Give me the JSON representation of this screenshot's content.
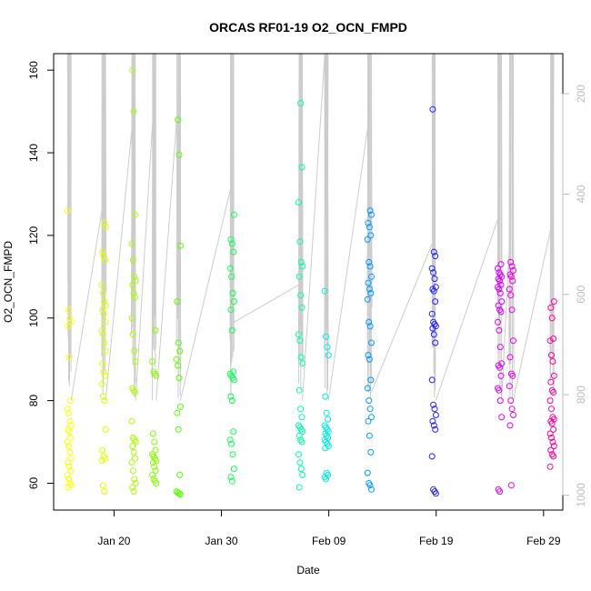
{
  "chart_data": {
    "type": "scatter",
    "title": "ORCAS RF01-19 O2_OCN_FMPD",
    "xlabel": "Date",
    "ylabel": "O2_OCN_FMPD",
    "xlim": [
      "2016-01-14T09:00",
      "2016-03-01T19:00"
    ],
    "ylim": [
      53.5,
      164
    ],
    "y2lim": [
      1030,
      120
    ],
    "x_ticks": [
      {
        "date": "2016-01-20",
        "label": "Jan 20"
      },
      {
        "date": "2016-01-30",
        "label": "Jan 30"
      },
      {
        "date": "2016-02-09",
        "label": "Feb 09"
      },
      {
        "date": "2016-02-19",
        "label": "Feb 19"
      },
      {
        "date": "2016-02-29",
        "label": "Feb 29"
      }
    ],
    "y_ticks": [
      60,
      80,
      100,
      120,
      140,
      160
    ],
    "y2_ticks": [
      200,
      400,
      600,
      800,
      1000
    ],
    "grid": false,
    "legend": "none",
    "colors": {
      "track": "#cccccc",
      "right_axis": "#bdbdbd"
    },
    "flights": [
      {
        "date": "2016-01-15T20:00",
        "color": "#ffff00",
        "values": [
          126,
          102,
          100,
          99,
          98,
          90.5,
          80,
          78,
          77,
          75,
          74,
          73,
          72.5,
          71,
          70,
          69,
          67.5,
          66,
          65,
          64,
          63,
          62,
          61,
          60,
          59.5,
          59
        ]
      },
      {
        "date": "2016-01-19T01:00",
        "color": "#dfff00",
        "values": [
          123,
          122,
          116,
          115,
          114,
          108,
          106,
          104,
          103,
          102,
          101,
          99,
          97,
          96,
          94,
          92,
          89,
          87,
          86,
          84,
          81,
          80,
          73,
          68,
          66.5,
          66,
          65.5,
          59.5,
          58
        ]
      },
      {
        "date": "2016-01-21T20:00",
        "color": "#aaff00",
        "values": [
          160,
          150,
          125,
          118,
          114,
          110,
          109,
          108,
          106,
          105,
          100,
          96,
          92,
          89.5,
          83,
          82.5,
          82,
          75,
          71,
          70.5,
          70,
          69,
          67.5,
          66,
          65,
          63,
          61,
          60,
          59,
          58
        ]
      },
      {
        "date": "2016-01-23T18:00",
        "color": "#88ff00",
        "values": [
          97,
          89.5,
          87,
          86.5,
          86,
          72,
          70,
          68,
          67,
          66.5,
          66,
          65.5,
          65,
          64,
          63,
          62,
          61,
          60.5,
          60
        ]
      },
      {
        "date": "2016-01-26T00:00",
        "color": "#55ff00",
        "values": [
          148,
          139.5,
          117.5,
          104,
          94,
          92,
          90,
          88.5,
          85.5,
          78.5,
          77,
          73,
          62,
          58,
          57.7,
          57.5,
          57.3
        ]
      },
      {
        "date": "2016-01-31T00:00",
        "color": "#11ff55",
        "values": [
          125,
          119,
          118,
          116,
          112,
          110,
          106,
          104,
          102,
          97,
          87,
          86.5,
          86,
          85.5,
          85,
          81,
          80,
          72.5,
          70.5,
          69.5,
          67,
          63.5,
          61.5,
          60.5
        ]
      },
      {
        "date": "2016-02-06T09:00",
        "color": "#00ffaa",
        "values": [
          152,
          136.5,
          128,
          118.5,
          113.5,
          112.5,
          110,
          105.5,
          102.5,
          96,
          94.5,
          90.5,
          89,
          82.5,
          78,
          76,
          74,
          73.5,
          73,
          72.5,
          71.5,
          70.5,
          70,
          67,
          65,
          63.5,
          62,
          59
        ]
      },
      {
        "date": "2016-02-08T19:00",
        "color": "#00f0e0",
        "values": [
          106.5,
          95.5,
          93,
          91,
          81,
          77,
          75.5,
          74,
          73.5,
          73,
          72.5,
          72,
          71.5,
          71,
          70.5,
          70,
          69.5,
          69,
          68.5,
          62.5,
          62,
          61.5,
          61
        ]
      },
      {
        "date": "2016-02-12T19:00",
        "color": "#0099ff",
        "values": [
          126,
          125,
          123,
          122,
          120,
          119,
          113.5,
          112.5,
          110,
          108.5,
          107,
          106,
          104.5,
          99,
          98,
          94,
          91,
          90,
          85,
          83,
          80,
          78,
          76,
          75,
          71.5,
          67.5,
          62.5,
          60,
          59.5,
          58.5
        ]
      },
      {
        "date": "2016-02-18T19:00",
        "color": "#2222ff",
        "values": [
          150.5,
          116,
          115,
          112,
          111,
          109.5,
          107.5,
          107,
          106.5,
          104,
          101,
          99,
          98.5,
          98,
          97.5,
          96,
          94,
          85,
          79,
          78,
          76.5,
          75,
          74,
          73,
          66.5,
          58.5,
          58,
          57.5
        ]
      },
      {
        "date": "2016-02-24T22:00",
        "color": "#dd00ff",
        "values": [
          113,
          112,
          111,
          110.5,
          110,
          109.5,
          109,
          108,
          107.5,
          107,
          106,
          104,
          103,
          102,
          101.5,
          99,
          97,
          93,
          89,
          88.5,
          88,
          86,
          83,
          82.5,
          80,
          76,
          58.5,
          58
        ]
      },
      {
        "date": "2016-02-26T00:00",
        "color": "#f000e6",
        "values": [
          113.5,
          112.5,
          111.5,
          110.5,
          110,
          109,
          107,
          105.5,
          102,
          94.5,
          90.5,
          86.5,
          86,
          83.5,
          80,
          78,
          76.5,
          74,
          59.5
        ]
      },
      {
        "date": "2016-02-29T19:00",
        "color": "#ff0099",
        "values": [
          104,
          102.5,
          100,
          95,
          94.5,
          91,
          89.5,
          86,
          84.5,
          82.5,
          82,
          80,
          78,
          76,
          75.5,
          75,
          74.5,
          73,
          72,
          71,
          70,
          69,
          68,
          67,
          66.5,
          64
        ]
      }
    ]
  }
}
